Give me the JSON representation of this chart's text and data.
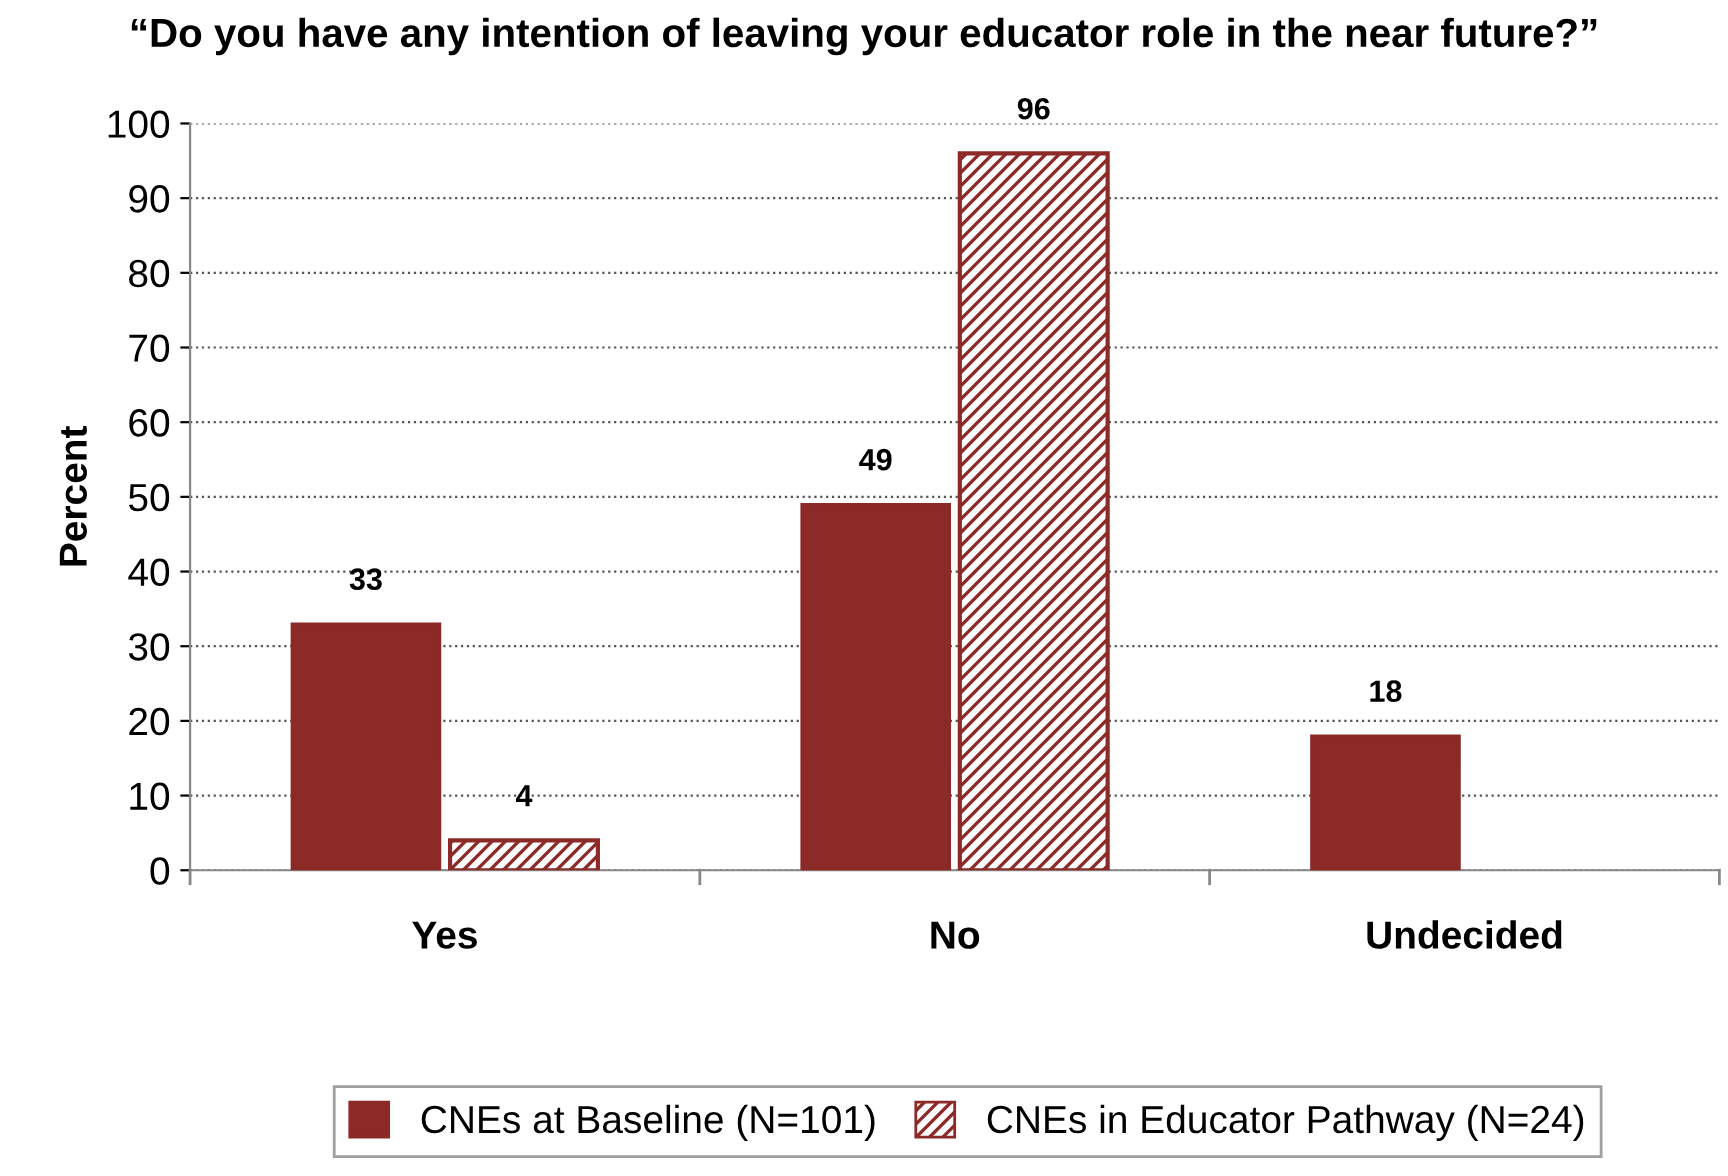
{
  "chart_data": {
    "type": "bar",
    "title": "“Do you have any intention of leaving your educator role in the near future?”",
    "ylabel": "Percent",
    "categories": [
      "Yes",
      "No",
      "Undecided"
    ],
    "series": [
      {
        "name": "CNEs at Baseline (N=101)",
        "color": "#8b2a27",
        "values": [
          33,
          49,
          18
        ]
      },
      {
        "name": "CNEs in Educator Pathway (N=24)",
        "color": "#8b2a27",
        "values": [
          4,
          96,
          null
        ]
      }
    ],
    "ylim": [
      0,
      100
    ],
    "yticks": [
      0,
      10,
      20,
      30,
      40,
      50,
      60,
      70,
      80,
      90,
      100
    ],
    "grid": "y",
    "legend": "bottom",
    "data_labels": true
  }
}
